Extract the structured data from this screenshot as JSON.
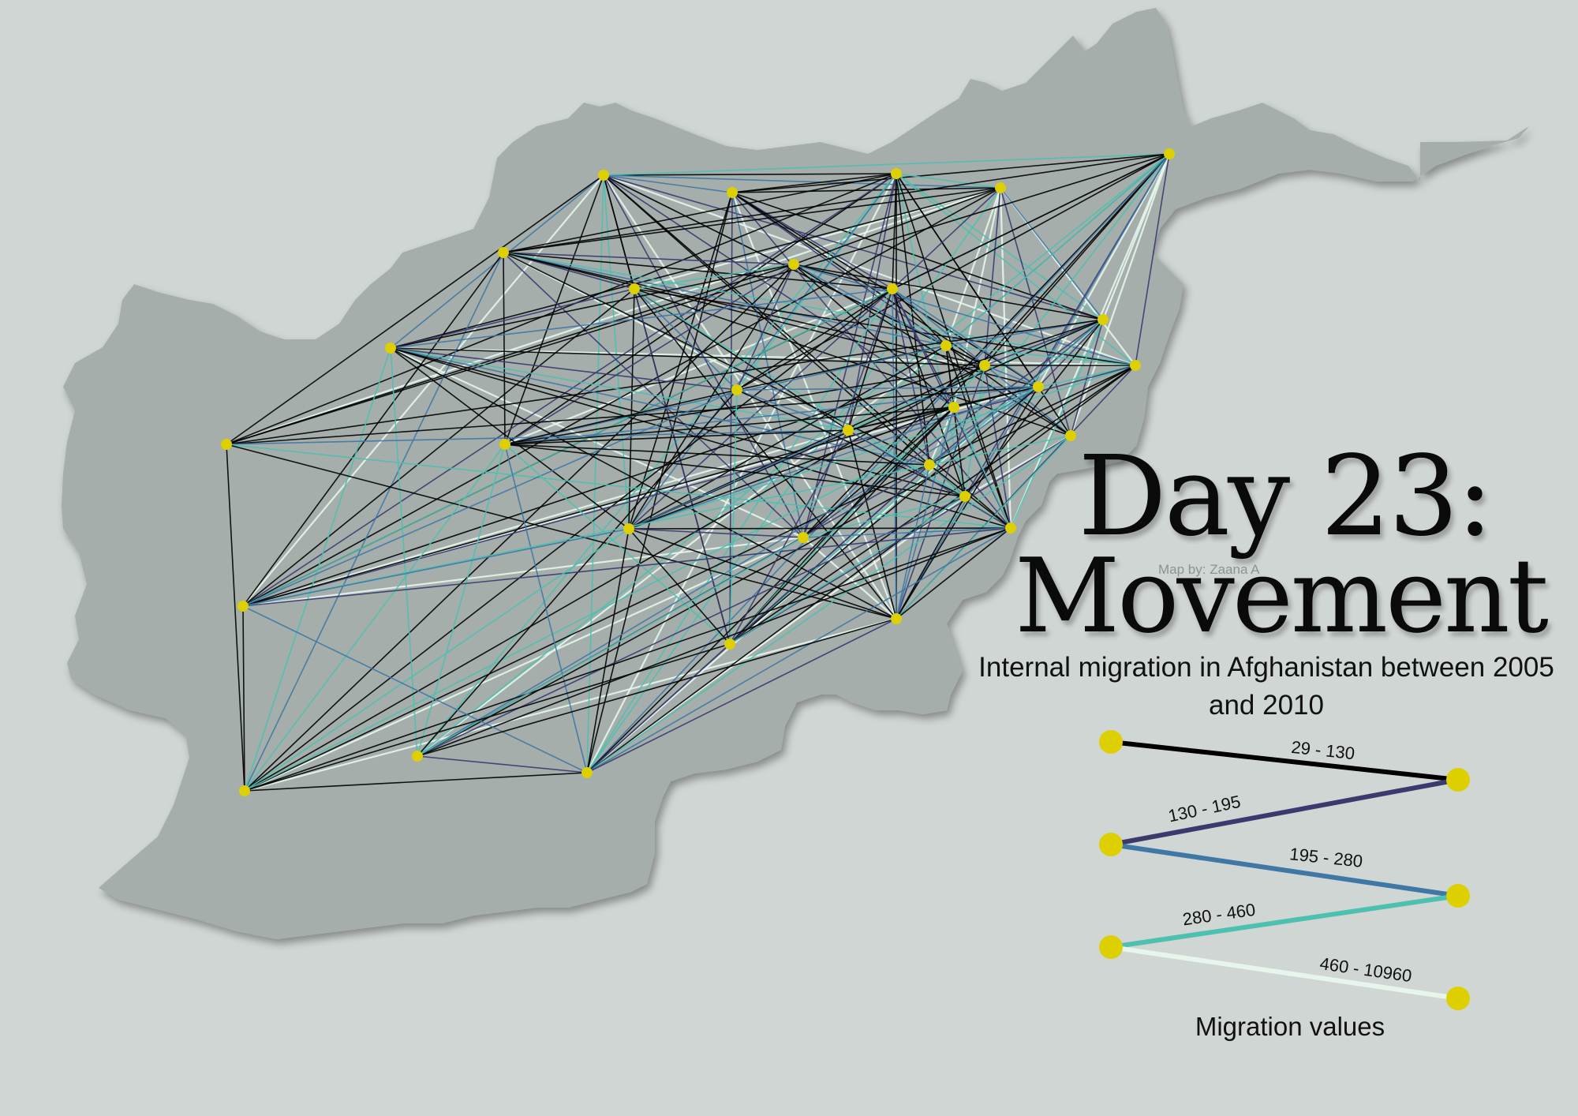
{
  "map": {
    "title_line1": "Day 23:",
    "title_line2": "Movement",
    "credit": "Map by: Zaana A",
    "subtitle": "Internal migration in Afghanistan between 2005 and 2010",
    "node_color": "#ddcf00",
    "land_color": "#a5aeaa",
    "background_color": "#d0d6d4"
  },
  "legend": {
    "title": "Migration values",
    "classes": [
      {
        "label": "29 - 130",
        "color": "#000000"
      },
      {
        "label": "130 - 195",
        "color": "#3b3a6e"
      },
      {
        "label": "195 - 280",
        "color": "#3f78a5"
      },
      {
        "label": "280 - 460",
        "color": "#4dc0b0"
      },
      {
        "label": "460 - 10960",
        "color": "#e6f6ec"
      }
    ]
  }
}
